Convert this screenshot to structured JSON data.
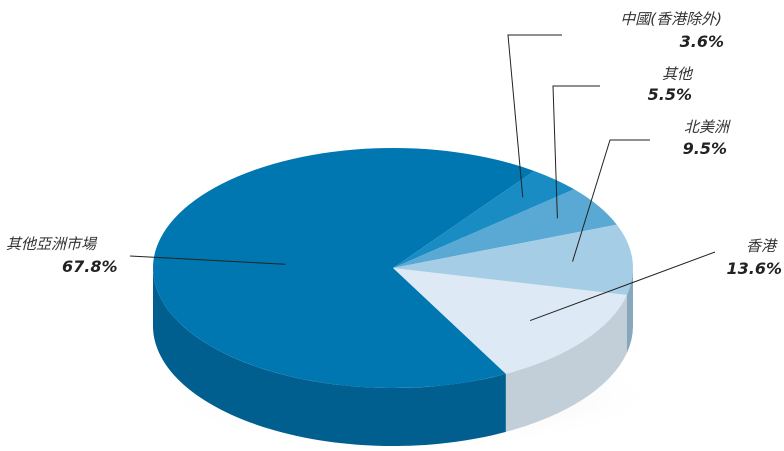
{
  "chart_data": {
    "type": "pie",
    "style": "3d",
    "title": "",
    "slices": [
      {
        "label": "香港",
        "value": 13.6,
        "value_label": "13.6%",
        "color": "#dde9f4",
        "side_color": "#c2ced8"
      },
      {
        "label": "其他亞洲市場",
        "value": 67.8,
        "value_label": "67.8%",
        "color": "#0077b0",
        "side_color": "#005f8e"
      },
      {
        "label": "中國(香港除外)",
        "value": 3.6,
        "value_label": "3.6%",
        "color": "#1a8cc4",
        "side_color": "#136f9c"
      },
      {
        "label": "其他",
        "value": 5.5,
        "value_label": "5.5%",
        "color": "#5aa9d4",
        "side_color": "#4888aa"
      },
      {
        "label": "北美洲",
        "value": 9.5,
        "value_label": "9.5%",
        "color": "#a6cde6",
        "side_color": "#86a7bc"
      }
    ]
  }
}
